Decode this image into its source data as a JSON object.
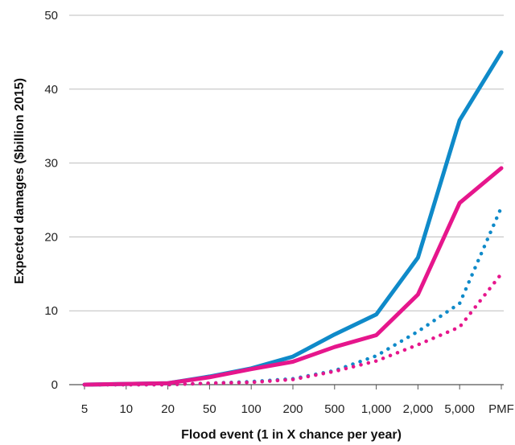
{
  "chart_data": {
    "type": "line",
    "title": "",
    "xlabel": "Flood event (1 in X chance per year)",
    "ylabel": "Expected damages ($billion 2015)",
    "categories": [
      "5",
      "10",
      "20",
      "50",
      "100",
      "200",
      "500",
      "1,000",
      "2,000",
      "5,000",
      "PMF"
    ],
    "ylim": [
      0,
      50
    ],
    "yticks": [
      "0",
      "10",
      "20",
      "30",
      "40",
      "50"
    ],
    "grid": "horizontal",
    "legend": "none",
    "series": [
      {
        "color": "#0f8ac9",
        "style": "solid",
        "values": [
          0,
          0.1,
          0.2,
          1.1,
          2.2,
          3.8,
          6.8,
          9.5,
          17.2,
          35.8,
          45.0
        ]
      },
      {
        "color": "#e6168c",
        "style": "solid",
        "values": [
          0,
          0.1,
          0.2,
          1.0,
          2.1,
          3.1,
          5.1,
          6.7,
          12.2,
          24.6,
          29.3
        ]
      },
      {
        "color": "#0f8ac9",
        "style": "dotted",
        "values": [
          0,
          0,
          0,
          0.2,
          0.4,
          0.8,
          1.9,
          3.9,
          7.2,
          11.0,
          24.0
        ]
      },
      {
        "color": "#e6168c",
        "style": "dotted",
        "values": [
          0,
          0,
          0,
          0.2,
          0.3,
          0.7,
          1.8,
          3.2,
          5.4,
          7.8,
          15.0
        ]
      }
    ]
  }
}
